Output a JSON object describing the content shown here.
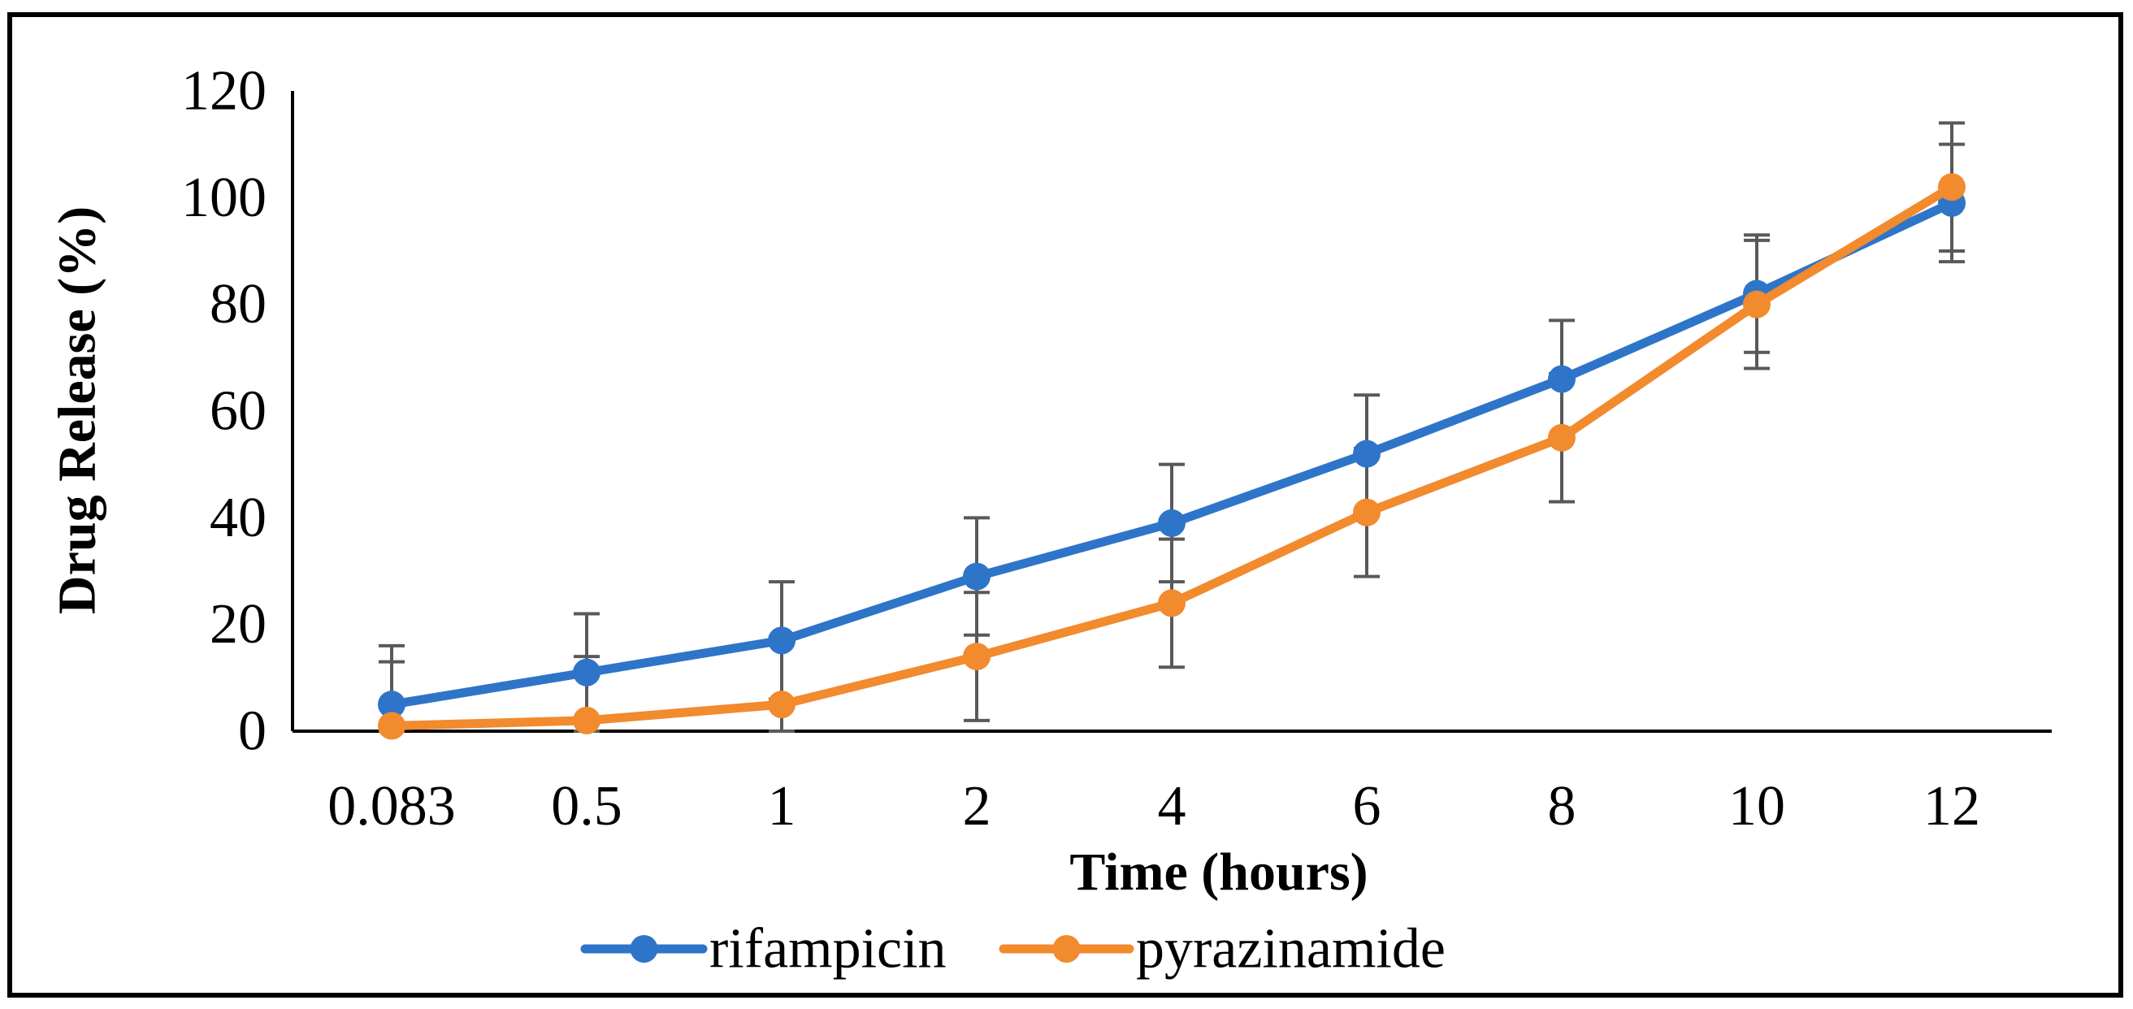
{
  "chart_data": {
    "type": "line",
    "title": "",
    "xlabel": "Time (hours)",
    "ylabel": "Drug Release (%)",
    "categories": [
      "0.083",
      "0.5",
      "1",
      "2",
      "4",
      "6",
      "8",
      "10",
      "12"
    ],
    "ylim": [
      0,
      120
    ],
    "yticks": [
      0,
      20,
      40,
      60,
      80,
      100,
      120
    ],
    "grid": false,
    "legend_position": "bottom-center",
    "series": [
      {
        "name": "rifampicin",
        "color": "#2E75C9",
        "values": [
          5,
          11,
          17,
          29,
          39,
          52,
          66,
          82,
          99
        ],
        "error": [
          11,
          11,
          11,
          11,
          11,
          11,
          11,
          11,
          11
        ]
      },
      {
        "name": "pyrazinamide",
        "color": "#F28A2E",
        "values": [
          1,
          2,
          5,
          14,
          24,
          41,
          55,
          80,
          102
        ],
        "error": [
          12,
          12,
          12,
          12,
          12,
          12,
          12,
          12,
          12
        ]
      }
    ]
  }
}
